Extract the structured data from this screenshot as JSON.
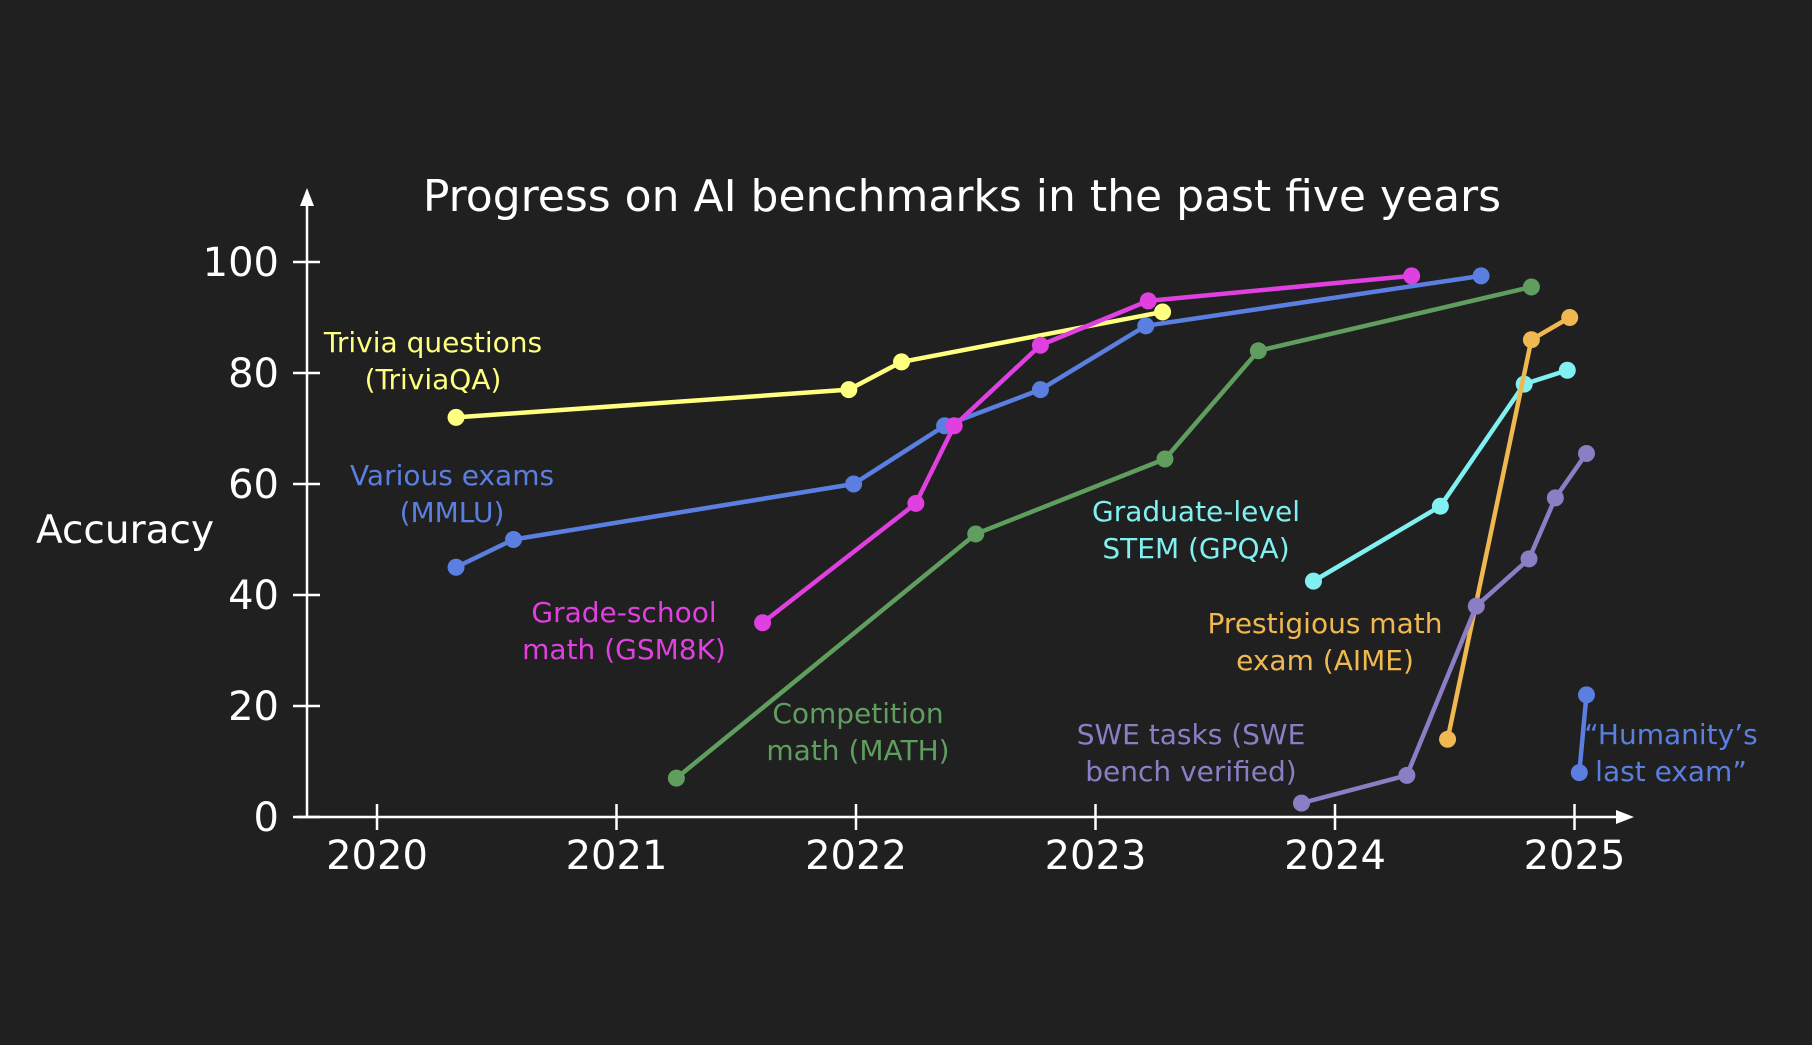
{
  "chart_data": {
    "type": "line",
    "title": "Progress on AI benchmarks in the past five years",
    "xlabel": "",
    "ylabel": "Accuracy",
    "xlim": [
      2019.7,
      2025.2
    ],
    "ylim": [
      0,
      100
    ],
    "x_ticks": [
      "2020",
      "2021",
      "2022",
      "2023",
      "2024",
      "2025"
    ],
    "y_ticks": [
      "0",
      "20",
      "40",
      "60",
      "80",
      "100"
    ],
    "grid": false,
    "legend": "none (direct labels next to each series)",
    "series": [
      {
        "name": "Trivia questions (TriviaQA)",
        "label_lines": [
          "Trivia questions",
          "(TriviaQA)"
        ],
        "color": "#ffff80",
        "points": [
          [
            2020.33,
            72
          ],
          [
            2021.97,
            77
          ],
          [
            2022.19,
            82
          ],
          [
            2023.28,
            91
          ]
        ]
      },
      {
        "name": "Various exams (MMLU)",
        "label_lines": [
          "Various exams",
          "(MMLU)"
        ],
        "color": "#5b7fe0",
        "points": [
          [
            2020.33,
            45
          ],
          [
            2020.57,
            50
          ],
          [
            2021.99,
            60
          ],
          [
            2022.37,
            70.5
          ],
          [
            2022.77,
            77
          ],
          [
            2023.21,
            88.5
          ],
          [
            2024.61,
            97.5
          ]
        ]
      },
      {
        "name": "Grade-school math (GSM8K)",
        "label_lines": [
          "Grade-school",
          "math (GSM8K)"
        ],
        "color": "#e040e0",
        "points": [
          [
            2021.61,
            35
          ],
          [
            2022.25,
            56.5
          ],
          [
            2022.41,
            70.5
          ],
          [
            2022.77,
            85
          ],
          [
            2023.22,
            93
          ],
          [
            2024.32,
            97.5
          ]
        ]
      },
      {
        "name": "Competition math (MATH)",
        "label_lines": [
          "Competition",
          "math (MATH)"
        ],
        "color": "#5f9e5f",
        "points": [
          [
            2021.25,
            7
          ],
          [
            2022.5,
            51
          ],
          [
            2023.29,
            64.5
          ],
          [
            2023.68,
            84
          ],
          [
            2024.82,
            95.5
          ]
        ]
      },
      {
        "name": "Graduate-level STEM (GPQA)",
        "label_lines": [
          "Graduate-level",
          "STEM (GPQA)"
        ],
        "color": "#80f0f0",
        "points": [
          [
            2023.91,
            42.5
          ],
          [
            2024.44,
            56
          ],
          [
            2024.79,
            78
          ],
          [
            2024.97,
            80.5
          ]
        ]
      },
      {
        "name": "Prestigious math exam (AIME)",
        "label_lines": [
          "Prestigious math",
          "exam (AIME)"
        ],
        "color": "#f0b850",
        "points": [
          [
            2024.47,
            14
          ],
          [
            2024.82,
            86
          ],
          [
            2024.98,
            90
          ]
        ]
      },
      {
        "name": "SWE tasks (SWE bench verified)",
        "label_lines": [
          "SWE tasks (SWE",
          "bench verified)"
        ],
        "color": "#8c7ec4",
        "points": [
          [
            2023.86,
            2.5
          ],
          [
            2024.3,
            7.5
          ],
          [
            2024.59,
            38
          ],
          [
            2024.81,
            46.5
          ],
          [
            2024.92,
            57.5
          ],
          [
            2025.05,
            65.5
          ]
        ]
      },
      {
        "name": "“Humanity’s last exam”",
        "label_lines": [
          "“Humanity’s",
          "last exam”"
        ],
        "color": "#5b7fe0",
        "points": [
          [
            2025.02,
            8
          ],
          [
            2025.05,
            22
          ]
        ]
      }
    ]
  }
}
